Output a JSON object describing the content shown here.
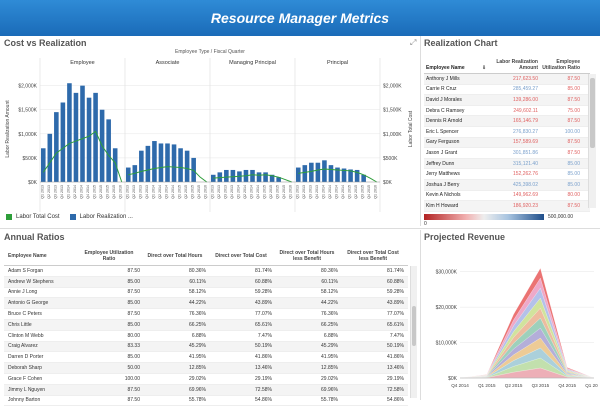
{
  "header": {
    "title": "Resource Manager Metrics"
  },
  "cost_vs_realization": {
    "title": "Cost vs Realization",
    "filter_label": "Employee Type  /  Fiscal Quarter",
    "legend": [
      "Labor Total Cost",
      "Labor Realization ..."
    ],
    "colors": {
      "bar": "#2e6aab",
      "line": "#2e9e3a"
    }
  },
  "chart_data": [
    {
      "type": "bar",
      "title": "Cost vs Realization",
      "groups": [
        "Employee",
        "Associate",
        "Managing Principal",
        "Principal"
      ],
      "categories": [
        "Q1 2013",
        "Q2 2013",
        "Q3 2013",
        "Q4 2013",
        "Q1 2014",
        "Q2 2014",
        "Q3 2014",
        "Q4 2014",
        "Q1 2015",
        "Q2 2015",
        "Q3 2015",
        "Q4 2015",
        "Q1 2016"
      ],
      "ylabel": "Labor Realization Amount",
      "y2label": "Labor Total Cost",
      "yticks": [
        "$0K",
        "$500K",
        "$1,000K",
        "$1,500K",
        "$2,000K"
      ],
      "ylim": [
        0,
        2200
      ],
      "series": [
        {
          "name": "Labor Realization Amount",
          "kind": "bar",
          "values": {
            "Employee": [
              700,
              1000,
              1450,
              1650,
              2050,
              1850,
              2000,
              1750,
              1850,
              1500,
              1300,
              700,
              0
            ],
            "Associate": [
              300,
              350,
              650,
              750,
              850,
              800,
              800,
              780,
              700,
              650,
              500,
              0,
              0
            ],
            "Managing Principal": [
              150,
              200,
              250,
              250,
              220,
              250,
              250,
              200,
              200,
              150,
              100,
              0,
              0
            ],
            "Principal": [
              300,
              350,
              400,
              400,
              450,
              350,
              300,
              280,
              260,
              250,
              150,
              0,
              0
            ]
          }
        },
        {
          "name": "Labor Total Cost",
          "kind": "line",
          "values": {
            "Employee": [
              200,
              400,
              600,
              700,
              800,
              850,
              900,
              950,
              1050,
              750,
              550,
              400,
              0
            ],
            "Associate": [
              150,
              180,
              220,
              250,
              280,
              300,
              320,
              310,
              300,
              280,
              240,
              100,
              0
            ],
            "Managing Principal": [
              80,
              90,
              100,
              110,
              120,
              130,
              150,
              140,
              150,
              130,
              100,
              50,
              0
            ],
            "Principal": [
              180,
              200,
              220,
              250,
              270,
              260,
              250,
              240,
              230,
              200,
              150,
              80,
              0
            ]
          }
        }
      ]
    },
    {
      "type": "area",
      "title": "Projected Revenue",
      "categories": [
        "Q4 2014",
        "Q1 2015",
        "Q2 2015",
        "Q3 2015",
        "Q4 2015",
        "Q1 2016"
      ],
      "yticks": [
        "$0K",
        "$10,000K",
        "$20,000K",
        "$30,000K"
      ],
      "ylim": [
        0,
        35000
      ],
      "stack_totals": [
        0,
        1000,
        18000,
        31000,
        3000,
        0
      ]
    }
  ],
  "realization_chart": {
    "title": "Realization Chart",
    "headers": [
      "Employee Name",
      "Labor Realization Amount",
      "Employee Utilization Ratio"
    ],
    "rows": [
      [
        "Anthony J Mills",
        "217,623.50",
        "87.50",
        "#e06060",
        "#e06060"
      ],
      [
        "Carrie R Cruz",
        "285,459.27",
        "85.00",
        "#7aa0cc",
        "#e06060"
      ],
      [
        "David J Morales",
        "139,286.00",
        "87.50",
        "#e06060",
        "#e06060"
      ],
      [
        "Debra C Ramsey",
        "249,602.11",
        "75.00",
        "#e06060",
        "#e06060"
      ],
      [
        "Dennis R Arnold",
        "165,146.79",
        "87.50",
        "#e06060",
        "#e06060"
      ],
      [
        "Eric L Spencer",
        "276,830.27",
        "100.00",
        "#7aa0cc",
        "#7aa0cc"
      ],
      [
        "Gary Ferguson",
        "157,589.69",
        "87.50",
        "#e06060",
        "#e06060"
      ],
      [
        "Jason J Grant",
        "301,851.86",
        "87.50",
        "#7aa0cc",
        "#e06060"
      ],
      [
        "Jeffrey Dunn",
        "315,121.40",
        "85.00",
        "#7aa0cc",
        "#7aa0cc"
      ],
      [
        "Jerry Matthews",
        "152,262.76",
        "85.00",
        "#e06060",
        "#7aa0cc"
      ],
      [
        "Joshua J Berry",
        "425,398.02",
        "85.00",
        "#7aa0cc",
        "#7aa0cc"
      ],
      [
        "Kevin A Nichols",
        "149,962.69",
        "80.00",
        "#e06060",
        "#e06060"
      ],
      [
        "Kim H Howard",
        "186,920.23",
        "87.50",
        "#e06060",
        "#e06060"
      ]
    ],
    "scale_min": "0",
    "scale_max": "500,000.00"
  },
  "annual_ratios": {
    "title": "Annual Ratios",
    "headers": [
      "Employee Name",
      "Employee Utilization Ratio",
      "Direct over Total Hours",
      "Direct over Total Cost",
      "Direct over Total Hours less Benefit",
      "Direct over Total Cost less Benefit"
    ],
    "rows": [
      [
        "Adam S Forgan",
        "87.50",
        "80.36%",
        "81.74%",
        "80.36%",
        "81.74%"
      ],
      [
        "Andrew W Stephens",
        "85.00",
        "60.11%",
        "60.88%",
        "60.11%",
        "60.88%"
      ],
      [
        "Annie J Long",
        "87.50",
        "58.12%",
        "59.28%",
        "58.12%",
        "59.28%"
      ],
      [
        "Antonio G George",
        "85.00",
        "44.22%",
        "43.89%",
        "44.22%",
        "43.89%"
      ],
      [
        "Bruce C Peters",
        "87.50",
        "76.36%",
        "77.07%",
        "76.36%",
        "77.07%"
      ],
      [
        "Chris Little",
        "85.00",
        "66.25%",
        "65.61%",
        "66.25%",
        "65.61%"
      ],
      [
        "Clinton M Webb",
        "80.00",
        "6.88%",
        "7.47%",
        "6.88%",
        "7.47%"
      ],
      [
        "Craig Alvarez",
        "83.33",
        "45.29%",
        "50.19%",
        "45.29%",
        "50.19%"
      ],
      [
        "Darren D Porter",
        "85.00",
        "41.95%",
        "41.86%",
        "41.95%",
        "41.86%"
      ],
      [
        "Deborah Sharp",
        "50.00",
        "12.85%",
        "13.46%",
        "12.85%",
        "13.46%"
      ],
      [
        "Grace F Cohen",
        "100.00",
        "29.02%",
        "29.19%",
        "29.02%",
        "29.19%"
      ],
      [
        "Jimmy L Nguyen",
        "87.50",
        "69.96%",
        "72.58%",
        "69.96%",
        "72.58%"
      ],
      [
        "Johnny Barton",
        "87.50",
        "55.78%",
        "54.86%",
        "55.78%",
        "54.86%"
      ]
    ]
  },
  "projected_revenue": {
    "title": "Projected Revenue"
  }
}
